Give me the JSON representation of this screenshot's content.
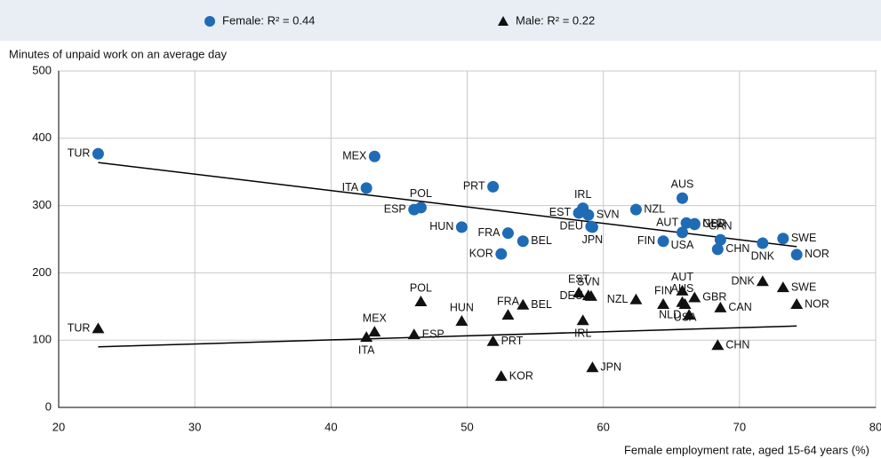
{
  "chart_data": {
    "type": "scatter",
    "y_label": "Minutes of unpaid work on an average day",
    "x_label": "Female employment rate, aged 15-64 years (%)",
    "xlim": [
      20,
      80
    ],
    "ylim": [
      0,
      500
    ],
    "xticks": [
      20,
      30,
      40,
      50,
      60,
      70,
      80
    ],
    "yticks": [
      0,
      100,
      200,
      300,
      400,
      500
    ],
    "grid": true,
    "categories": [
      "TUR",
      "MEX",
      "ITA",
      "POL",
      "ESP",
      "PRT",
      "HUN",
      "FRA",
      "BEL",
      "KOR",
      "IRL",
      "EST",
      "SVN",
      "DEU",
      "JPN",
      "NZL",
      "FIN",
      "AUS",
      "AUT",
      "NLD",
      "GBR",
      "USA",
      "CAN",
      "CHN",
      "DNK",
      "SWE",
      "NOR"
    ],
    "series": [
      {
        "name": "Female: R² = 0.44",
        "color": "#1f6bb5",
        "marker": "circle",
        "x": [
          22.9,
          43.2,
          42.6,
          46.6,
          46.1,
          51.9,
          49.6,
          53.0,
          54.1,
          52.5,
          58.5,
          58.2,
          58.9,
          59.1,
          59.2,
          62.4,
          64.4,
          65.8,
          66.1,
          66.7,
          66.7,
          65.8,
          68.6,
          68.4,
          71.7,
          73.2,
          74.2
        ],
        "values": [
          377,
          373,
          326,
          297,
          294,
          328,
          268,
          259,
          247,
          228,
          296,
          289,
          286,
          269,
          268,
          294,
          247,
          311,
          274,
          273,
          272,
          260,
          249,
          235,
          244,
          251,
          227
        ],
        "trend": {
          "x": [
            22.9,
            74.2
          ],
          "values": [
            364,
            239
          ]
        }
      },
      {
        "name": "Male: R² = 0.22",
        "color": "#111111",
        "marker": "triangle",
        "x": [
          22.9,
          43.2,
          42.6,
          46.6,
          46.1,
          51.9,
          49.6,
          53.0,
          54.1,
          52.5,
          58.5,
          58.2,
          58.9,
          59.1,
          59.2,
          62.4,
          64.4,
          65.8,
          65.8,
          66.3,
          66.7,
          66.0,
          68.6,
          68.4,
          71.7,
          73.2,
          74.2
        ],
        "values": [
          117,
          112,
          104,
          157,
          108,
          98,
          128,
          137,
          152,
          46,
          129,
          170,
          166,
          165,
          59,
          160,
          153,
          156,
          173,
          137,
          163,
          153,
          148,
          92,
          187,
          178,
          153
        ],
        "trend": {
          "x": [
            22.9,
            74.2
          ],
          "values": [
            90,
            121
          ]
        }
      }
    ]
  }
}
